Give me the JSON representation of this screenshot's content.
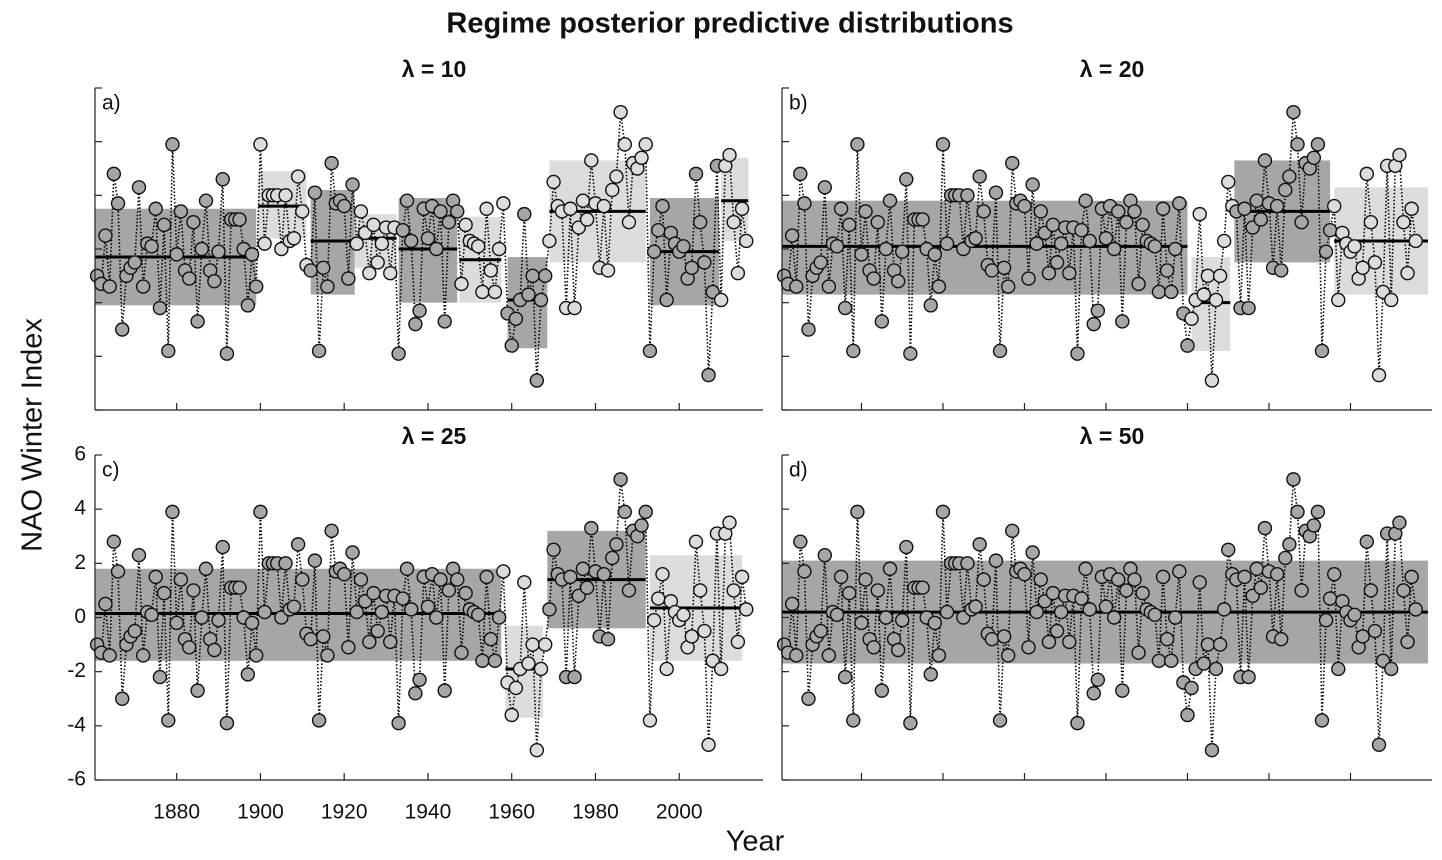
{
  "chart_data": {
    "type": "scatter",
    "title": "Regime posterior predictive distributions",
    "xlabel": "Year",
    "ylabel": "NAO Winter Index",
    "x": [
      1861,
      1862,
      1863,
      1864,
      1865,
      1866,
      1867,
      1868,
      1869,
      1870,
      1871,
      1872,
      1873,
      1874,
      1875,
      1876,
      1877,
      1878,
      1879,
      1880,
      1881,
      1882,
      1883,
      1884,
      1885,
      1886,
      1887,
      1888,
      1889,
      1890,
      1891,
      1892,
      1893,
      1894,
      1895,
      1896,
      1897,
      1898,
      1899,
      1900,
      1901,
      1902,
      1903,
      1904,
      1905,
      1906,
      1907,
      1908,
      1909,
      1910,
      1911,
      1912,
      1913,
      1914,
      1915,
      1916,
      1917,
      1918,
      1919,
      1920,
      1921,
      1922,
      1923,
      1924,
      1925,
      1926,
      1927,
      1928,
      1929,
      1930,
      1931,
      1932,
      1933,
      1934,
      1935,
      1936,
      1937,
      1938,
      1939,
      1940,
      1941,
      1942,
      1943,
      1944,
      1945,
      1946,
      1947,
      1948,
      1949,
      1950,
      1951,
      1952,
      1953,
      1954,
      1955,
      1956,
      1957,
      1958,
      1959,
      1960,
      1961,
      1962,
      1963,
      1964,
      1965,
      1966,
      1967,
      1968,
      1969,
      1970,
      1971,
      1972,
      1973,
      1974,
      1975,
      1976,
      1977,
      1978,
      1979,
      1980,
      1981,
      1982,
      1983,
      1984,
      1985,
      1986,
      1987,
      1988,
      1989,
      1990,
      1991,
      1992,
      1993,
      1994,
      1995,
      1996,
      1997,
      1998,
      1999,
      2000,
      2001,
      2002,
      2003,
      2004,
      2005,
      2006,
      2007,
      2008,
      2009,
      2010,
      2011,
      2012,
      2013,
      2014,
      2015,
      2016
    ],
    "values": [
      -1.0,
      -1.3,
      0.5,
      -1.4,
      2.8,
      1.7,
      -3.0,
      -1.0,
      -0.7,
      -0.5,
      2.3,
      -1.4,
      0.2,
      0.1,
      1.5,
      -2.2,
      0.9,
      -3.8,
      3.9,
      -0.2,
      1.4,
      -0.8,
      -1.1,
      1.0,
      -2.7,
      0.0,
      1.8,
      -0.8,
      -1.2,
      -0.1,
      2.6,
      -3.9,
      1.1,
      1.1,
      1.1,
      0.0,
      -2.1,
      -0.2,
      -1.4,
      3.9,
      0.2,
      2.0,
      2.0,
      2.0,
      0.0,
      2.0,
      0.3,
      0.4,
      2.7,
      1.4,
      -0.6,
      -0.8,
      2.1,
      -3.8,
      -0.7,
      -1.4,
      3.2,
      1.7,
      1.8,
      1.6,
      -1.1,
      2.4,
      0.2,
      1.4,
      0.6,
      -0.9,
      0.9,
      -0.5,
      0.2,
      0.8,
      -0.9,
      0.8,
      -3.9,
      0.7,
      1.8,
      0.3,
      -2.8,
      -2.3,
      1.5,
      0.4,
      1.6,
      0.0,
      1.4,
      -2.7,
      1.0,
      1.8,
      1.4,
      -1.3,
      0.9,
      0.3,
      0.2,
      0.1,
      -1.6,
      1.5,
      -0.8,
      -1.6,
      0.0,
      1.7,
      -2.4,
      -3.6,
      -2.6,
      -1.9,
      1.3,
      -1.7,
      -1.0,
      -4.9,
      -1.9,
      -1.0,
      0.3,
      2.5,
      1.6,
      1.4,
      -2.2,
      1.5,
      -2.2,
      0.8,
      1.8,
      1.1,
      3.3,
      1.7,
      -0.7,
      1.6,
      -0.8,
      2.2,
      2.7,
      5.1,
      3.9,
      1.0,
      3.2,
      3.0,
      3.4,
      3.9,
      -3.8,
      -0.1,
      0.7,
      1.6,
      -1.9,
      0.6,
      0.2,
      -0.1,
      0.1,
      -1.1,
      -0.7,
      2.8,
      1.0,
      -0.5,
      -4.7,
      -1.6,
      3.1,
      -1.9,
      3.1,
      3.5,
      1.0,
      -0.9,
      1.5,
      0.3
    ],
    "xlim": [
      1860.5,
      2020
    ],
    "ylim": [
      -6,
      6
    ],
    "xticks": [
      1880,
      1900,
      1920,
      1940,
      1960,
      1980,
      2000
    ],
    "yticks": [
      -6,
      -4,
      -2,
      0,
      2,
      4,
      6
    ],
    "line_color": "#000000",
    "mean_color": "#000000",
    "panels": [
      {
        "label": "a)",
        "title": "λ = 10",
        "regimes": [
          {
            "start": 1860.5,
            "end": 1899,
            "mean": -0.3,
            "lower": -2.1,
            "upper": 1.5,
            "color": "#a6a6a6"
          },
          {
            "start": 1899.5,
            "end": 1911,
            "mean": 1.6,
            "lower": 0.4,
            "upper": 2.9,
            "color": "#dcdcdc"
          },
          {
            "start": 1912,
            "end": 1922.5,
            "mean": 0.3,
            "lower": -1.7,
            "upper": 2.2,
            "color": "#a6a6a6"
          },
          {
            "start": 1922.5,
            "end": 1932.5,
            "mean": 0.4,
            "lower": -0.7,
            "upper": 1.3,
            "color": "#dcdcdc"
          },
          {
            "start": 1933,
            "end": 1947,
            "mean": 0.0,
            "lower": -2.0,
            "upper": 1.9,
            "color": "#a6a6a6"
          },
          {
            "start": 1947.5,
            "end": 1957.5,
            "mean": -0.4,
            "lower": -2.0,
            "upper": 1.2,
            "color": "#dcdcdc"
          },
          {
            "start": 1959,
            "end": 1968.5,
            "mean": -1.9,
            "lower": -3.7,
            "upper": -0.3,
            "color": "#a6a6a6"
          },
          {
            "start": 1969,
            "end": 1992,
            "mean": 1.4,
            "lower": -0.5,
            "upper": 3.3,
            "color": "#dcdcdc"
          },
          {
            "start": 1993,
            "end": 2009.5,
            "mean": -0.1,
            "lower": -2.1,
            "upper": 1.9,
            "color": "#a6a6a6"
          },
          {
            "start": 2010,
            "end": 2016.5,
            "mean": 1.8,
            "lower": 0.3,
            "upper": 3.4,
            "color": "#dcdcdc"
          }
        ]
      },
      {
        "label": "b)",
        "title": "λ = 20",
        "regimes": [
          {
            "start": 1860.5,
            "end": 1960,
            "mean": 0.1,
            "lower": -1.7,
            "upper": 1.8,
            "color": "#a6a6a6"
          },
          {
            "start": 1961,
            "end": 1970.5,
            "mean": -2.0,
            "lower": -3.8,
            "upper": -0.3,
            "color": "#dcdcdc"
          },
          {
            "start": 1971.5,
            "end": 1995,
            "mean": 1.4,
            "lower": -0.5,
            "upper": 3.3,
            "color": "#a6a6a6"
          },
          {
            "start": 1996,
            "end": 2019,
            "mean": 0.3,
            "lower": -1.7,
            "upper": 2.3,
            "color": "#dcdcdc"
          }
        ]
      },
      {
        "label": "c)",
        "title": "λ = 25",
        "regimes": [
          {
            "start": 1860.5,
            "end": 1957.5,
            "mean": 0.15,
            "lower": -1.6,
            "upper": 1.8,
            "color": "#a6a6a6"
          },
          {
            "start": 1958.5,
            "end": 1967.5,
            "mean": -1.9,
            "lower": -3.7,
            "upper": -0.3,
            "color": "#dcdcdc"
          },
          {
            "start": 1968.5,
            "end": 1992,
            "mean": 1.4,
            "lower": -0.4,
            "upper": 3.2,
            "color": "#a6a6a6"
          },
          {
            "start": 1993,
            "end": 2015,
            "mean": 0.35,
            "lower": -1.6,
            "upper": 2.3,
            "color": "#dcdcdc"
          }
        ]
      },
      {
        "label": "d)",
        "title": "λ = 50",
        "regimes": [
          {
            "start": 1860.5,
            "end": 2019,
            "mean": 0.2,
            "lower": -1.7,
            "upper": 2.1,
            "color": "#a6a6a6"
          }
        ]
      }
    ]
  }
}
